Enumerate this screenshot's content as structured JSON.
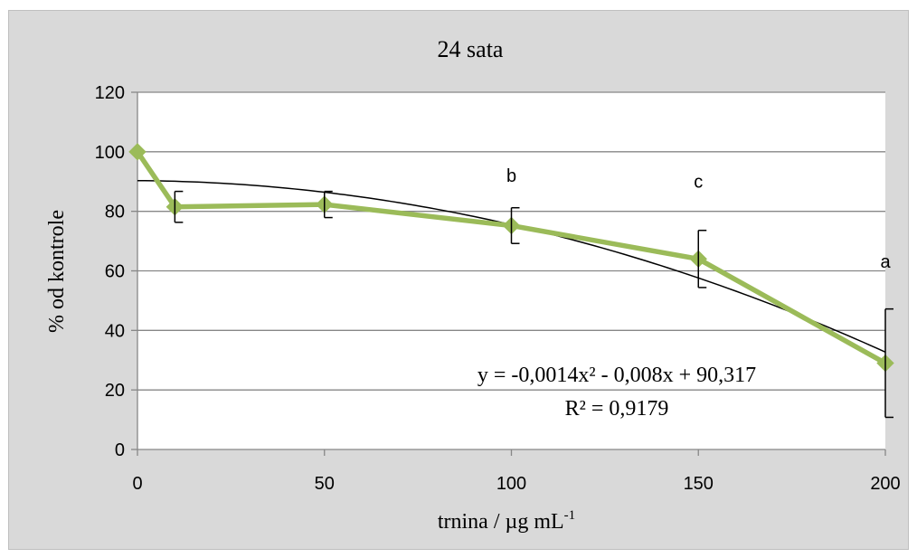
{
  "chart_data": {
    "type": "line",
    "title": "24 sata",
    "xlabel": "trnina / µg mL",
    "xlabel_superscript": "-1",
    "ylabel": "% od kontrole",
    "xlim": [
      0,
      200
    ],
    "ylim": [
      0,
      120
    ],
    "xticks": [
      0,
      50,
      100,
      150,
      200
    ],
    "yticks": [
      0,
      20,
      40,
      60,
      80,
      100,
      120
    ],
    "grid": "horizontal",
    "series": [
      {
        "color": "#9bbb59",
        "marker": "diamond",
        "points": [
          {
            "x": 0,
            "y": 100,
            "err": 0
          },
          {
            "x": 10,
            "y": 81.5,
            "err": 5.2
          },
          {
            "x": 50,
            "y": 82.3,
            "err": 4.4
          },
          {
            "x": 100,
            "y": 75.2,
            "err": 6.0
          },
          {
            "x": 150,
            "y": 64.0,
            "err": 9.6
          },
          {
            "x": 200,
            "y": 29.0,
            "err": 18.2
          }
        ]
      }
    ],
    "trendline": {
      "type": "polynomial",
      "coefficients": [
        -0.0014,
        -0.008,
        90.317
      ],
      "color": "#000000",
      "equation_text": "y = -0,0014x² - 0,008x + 90,317",
      "r2_text": "R² = 0,9179"
    },
    "annotations": [
      {
        "text": "b",
        "x": 100,
        "y": 90
      },
      {
        "text": "c",
        "x": 150,
        "y": 88
      },
      {
        "text": "a",
        "x": 200,
        "y": 61
      }
    ]
  }
}
